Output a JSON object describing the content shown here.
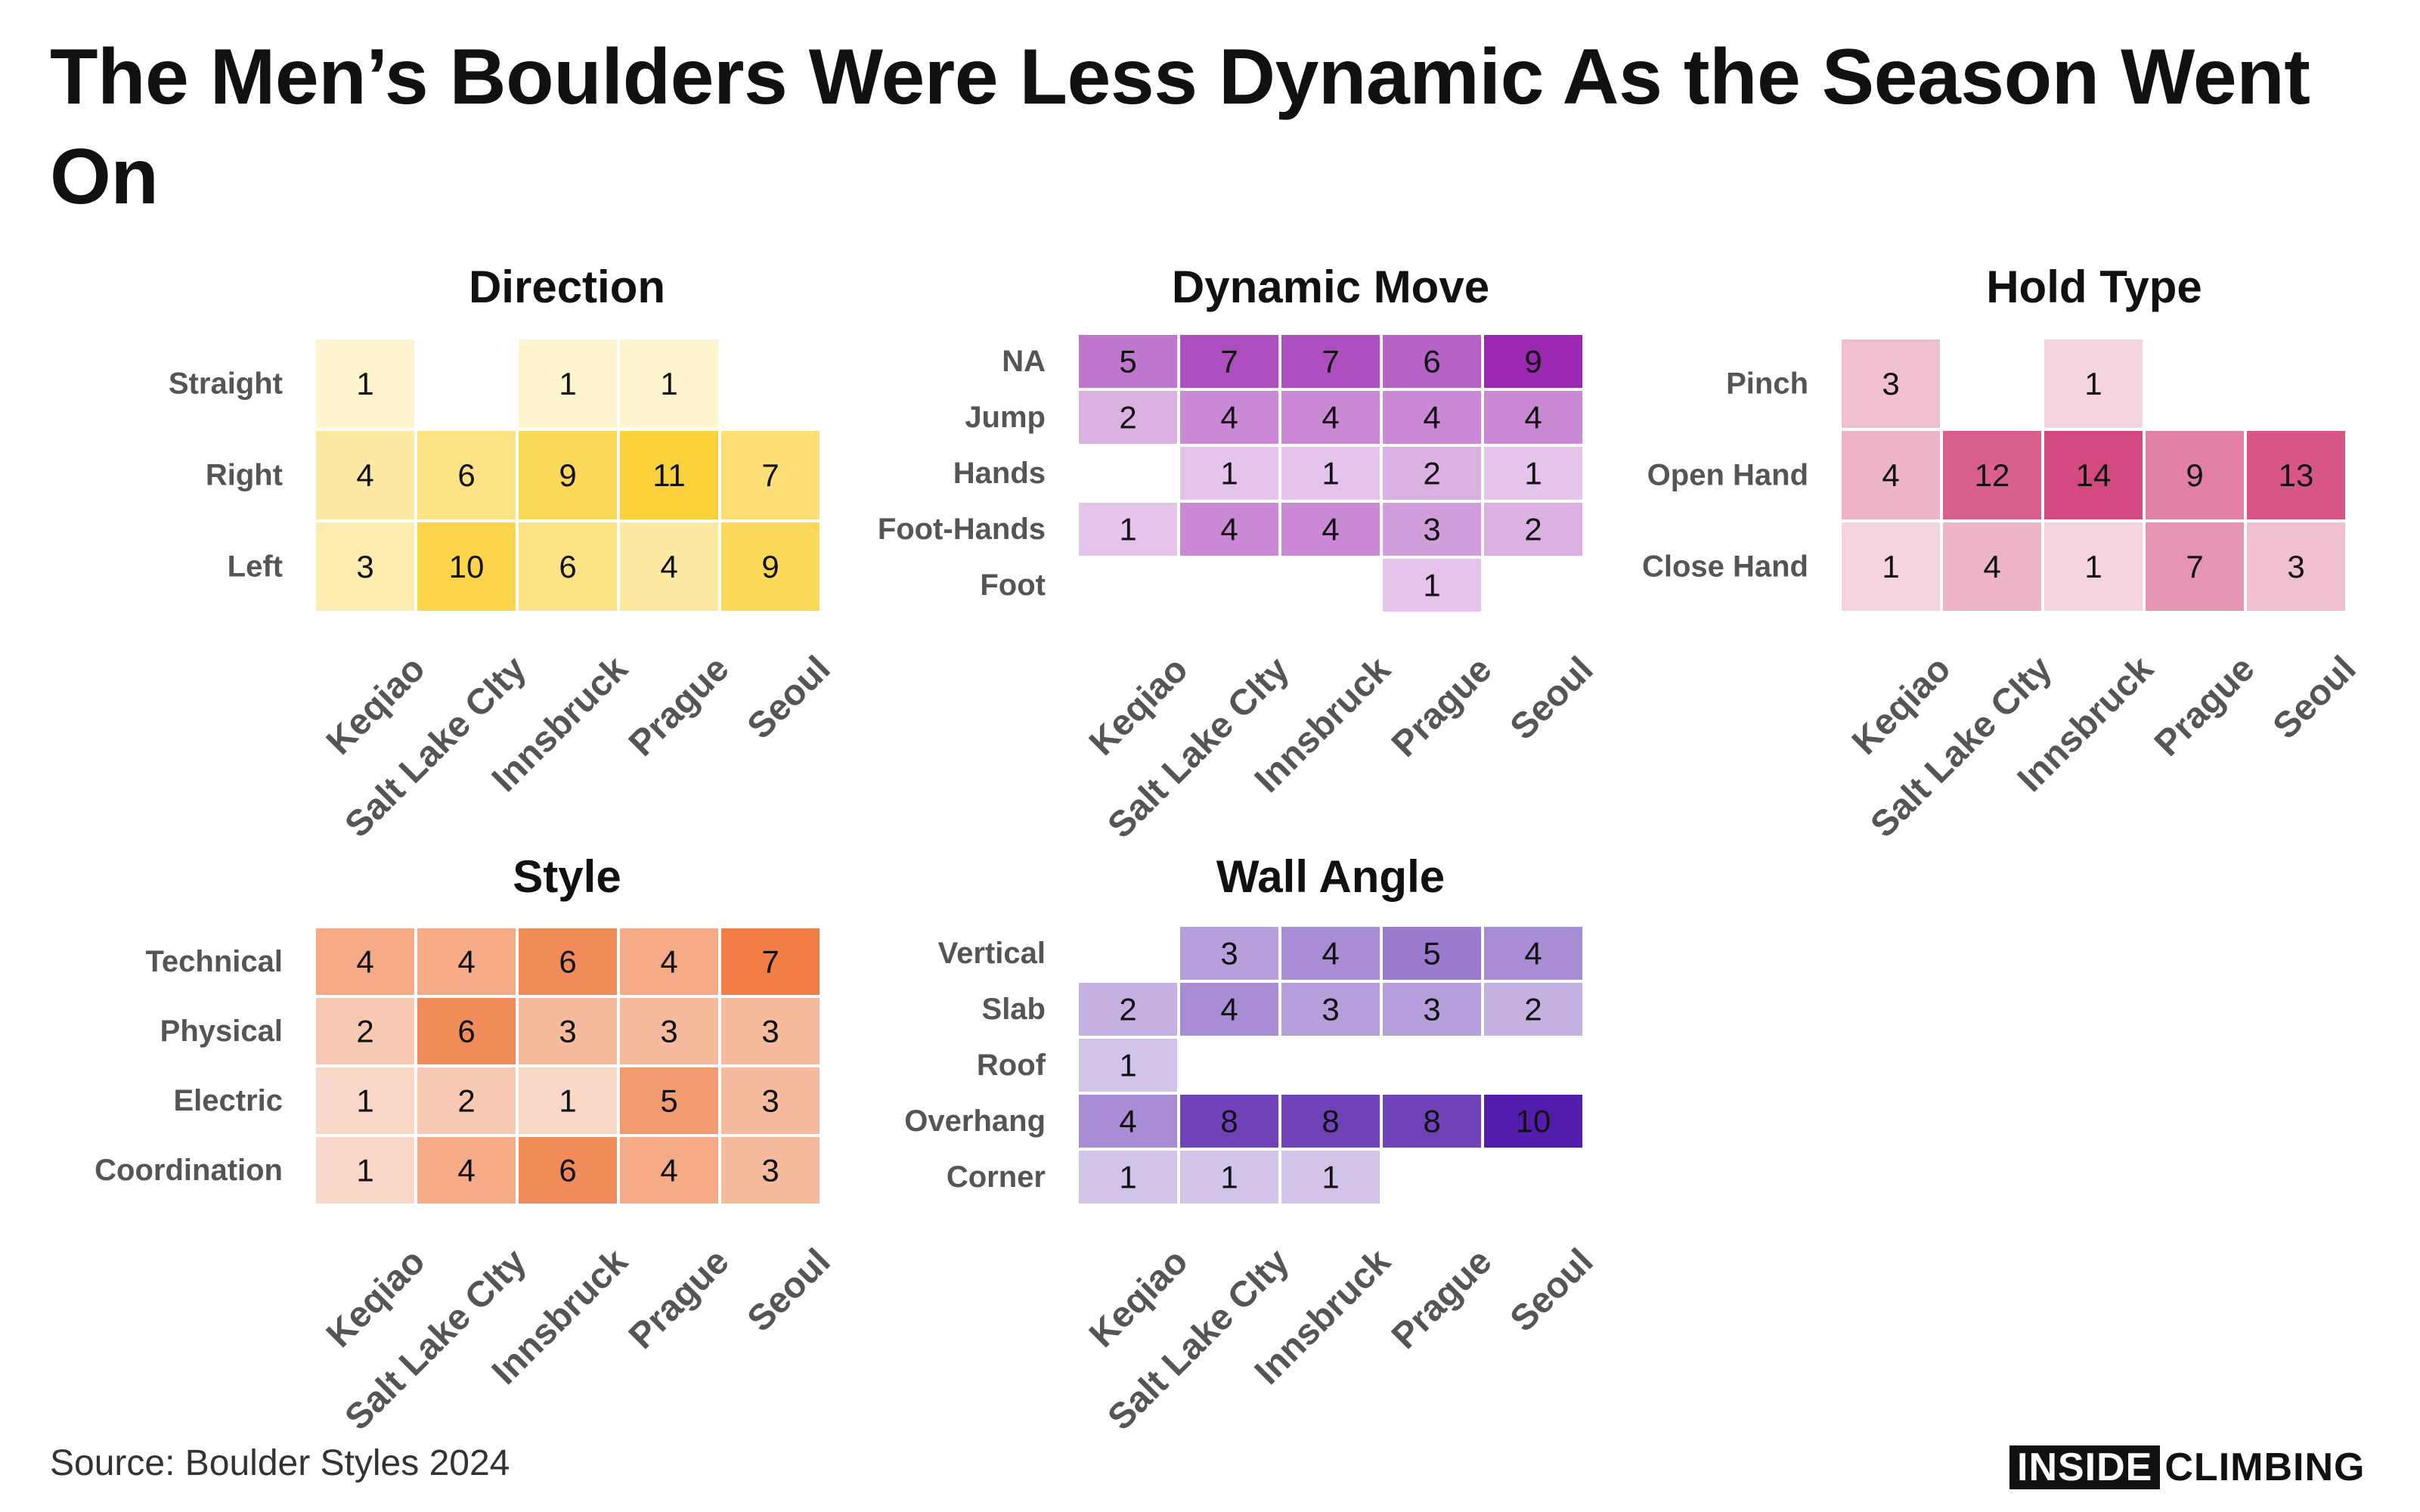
{
  "title": "The Men’s Boulders Were Less Dynamic As the Season Went On",
  "source": "Source: Boulder Styles 2024",
  "logo": {
    "part1": "INSIDE",
    "part2": "CLIMBING"
  },
  "chart_data": [
    {
      "type": "heatmap",
      "title": "Direction",
      "color": "#fcd23c",
      "vmax": 11,
      "categories": [
        "Keqiao",
        "Salt Lake CIty",
        "Innsbruck",
        "Prague",
        "Seoul"
      ],
      "rows": [
        "Straight",
        "Right",
        "Left"
      ],
      "values": [
        [
          1,
          null,
          1,
          1,
          null
        ],
        [
          4,
          6,
          9,
          11,
          7
        ],
        [
          3,
          10,
          6,
          4,
          9
        ]
      ]
    },
    {
      "type": "heatmap",
      "title": "Dynamic Move",
      "color": "#9c27b0",
      "vmax": 9,
      "categories": [
        "Keqiao",
        "Salt Lake CIty",
        "Innsbruck",
        "Prague",
        "Seoul"
      ],
      "rows": [
        "NA",
        "Jump",
        "Hands",
        "Foot-Hands",
        "Foot"
      ],
      "values": [
        [
          5,
          7,
          7,
          6,
          9
        ],
        [
          2,
          4,
          4,
          4,
          4
        ],
        [
          null,
          1,
          1,
          2,
          1
        ],
        [
          1,
          4,
          4,
          3,
          2
        ],
        [
          null,
          null,
          null,
          1,
          null
        ]
      ]
    },
    {
      "type": "heatmap",
      "title": "Hold Type",
      "color": "#d44a80",
      "vmax": 14,
      "categories": [
        "Keqiao",
        "Salt Lake CIty",
        "Innsbruck",
        "Prague",
        "Seoul"
      ],
      "rows": [
        "Pinch",
        "Open Hand",
        "Close Hand"
      ],
      "values": [
        [
          3,
          null,
          1,
          null,
          null
        ],
        [
          4,
          12,
          14,
          9,
          13
        ],
        [
          1,
          4,
          1,
          7,
          3
        ]
      ]
    },
    {
      "type": "heatmap",
      "title": "Style",
      "color": "#ef7d44",
      "vmax": 7,
      "categories": [
        "Keqiao",
        "Salt Lake CIty",
        "Innsbruck",
        "Prague",
        "Seoul"
      ],
      "rows": [
        "Technical",
        "Physical",
        "Electric",
        "Coordination"
      ],
      "values": [
        [
          4,
          4,
          6,
          4,
          7
        ],
        [
          2,
          6,
          3,
          3,
          3
        ],
        [
          1,
          2,
          1,
          5,
          3
        ],
        [
          1,
          4,
          6,
          4,
          3
        ]
      ]
    },
    {
      "type": "heatmap",
      "title": "Wall Angle",
      "color": "#531dab",
      "vmax": 10,
      "categories": [
        "Keqiao",
        "Salt Lake CIty",
        "Innsbruck",
        "Prague",
        "Seoul"
      ],
      "rows": [
        "Vertical",
        "Slab",
        "Roof",
        "Overhang",
        "Corner"
      ],
      "values": [
        [
          null,
          3,
          4,
          5,
          4
        ],
        [
          2,
          4,
          3,
          3,
          2
        ],
        [
          1,
          null,
          null,
          null,
          null
        ],
        [
          4,
          8,
          8,
          8,
          10
        ],
        [
          1,
          1,
          1,
          null,
          null
        ]
      ]
    }
  ]
}
